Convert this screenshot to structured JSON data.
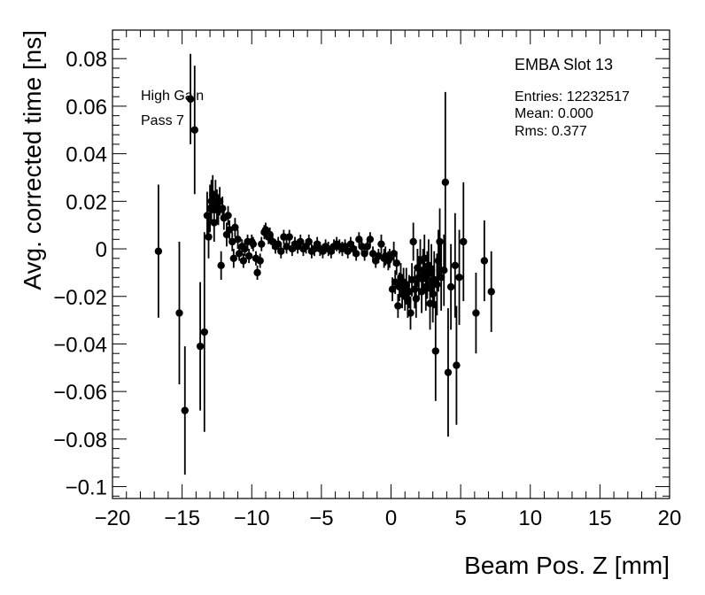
{
  "chart_data": {
    "type": "scatter",
    "title": "",
    "xlabel": "Beam Pos. Z [mm]",
    "ylabel": "Avg. corrected time [ns]",
    "xlim": [
      -20,
      20
    ],
    "ylim": [
      -0.105,
      0.092
    ],
    "grid": false,
    "xticks": [
      -20,
      -15,
      -10,
      -5,
      0,
      5,
      10,
      15,
      20
    ],
    "yticks": [
      -0.1,
      -0.08,
      -0.06,
      -0.04,
      -0.02,
      0,
      0.02,
      0.04,
      0.06,
      0.08
    ],
    "xtick_labels": [
      "−20",
      "−15",
      "−10",
      "−5",
      "0",
      "5",
      "10",
      "15",
      "20"
    ],
    "ytick_labels": [
      "−0.1",
      "−0.08",
      "−0.06",
      "−0.04",
      "−0.02",
      "0",
      "0.02",
      "0.04",
      "0.06",
      "0.08"
    ],
    "marker_color": "#000000",
    "annotations": {
      "gain": "High Gain",
      "pass": "Pass 7"
    },
    "stats_box": {
      "title": "EMBA Slot 13",
      "entries": "Entries: 12232517",
      "mean": "Mean: 0.000",
      "rms": "Rms: 0.377"
    },
    "series": [
      {
        "points": [
          {
            "x": -16.7,
            "y": -0.001,
            "e": 0.028
          },
          {
            "x": -15.2,
            "y": -0.027,
            "e": 0.03
          },
          {
            "x": -14.8,
            "y": -0.068,
            "e": 0.027
          },
          {
            "x": -14.4,
            "y": 0.063,
            "e": 0.019
          },
          {
            "x": -14.1,
            "y": 0.05,
            "e": 0.027
          },
          {
            "x": -13.7,
            "y": -0.041,
            "e": 0.027
          },
          {
            "x": -13.4,
            "y": -0.035,
            "e": 0.042
          },
          {
            "x": -13.2,
            "y": 0.014,
            "e": 0.01
          },
          {
            "x": -13.1,
            "y": 0.005,
            "e": 0.009
          },
          {
            "x": -13.0,
            "y": 0.017,
            "e": 0.01
          },
          {
            "x": -12.9,
            "y": 0.02,
            "e": 0.009
          },
          {
            "x": -12.8,
            "y": 0.023,
            "e": 0.008
          },
          {
            "x": -12.7,
            "y": 0.011,
            "e": 0.008
          },
          {
            "x": -12.6,
            "y": 0.022,
            "e": 0.007
          },
          {
            "x": -12.5,
            "y": 0.018,
            "e": 0.007
          },
          {
            "x": -12.4,
            "y": 0.016,
            "e": 0.006
          },
          {
            "x": -12.3,
            "y": 0.02,
            "e": 0.006
          },
          {
            "x": -12.2,
            "y": -0.007,
            "e": 0.006
          },
          {
            "x": -12.1,
            "y": 0.017,
            "e": 0.005
          },
          {
            "x": -12.0,
            "y": 0.013,
            "e": 0.005
          },
          {
            "x": -11.8,
            "y": 0.006,
            "e": 0.005
          },
          {
            "x": -11.7,
            "y": 0.014,
            "e": 0.004
          },
          {
            "x": -11.6,
            "y": 0.008,
            "e": 0.004
          },
          {
            "x": -11.4,
            "y": 0.003,
            "e": 0.004
          },
          {
            "x": -11.3,
            "y": -0.004,
            "e": 0.004
          },
          {
            "x": -11.2,
            "y": 0.009,
            "e": 0.004
          },
          {
            "x": -11.0,
            "y": 0.004,
            "e": 0.004
          },
          {
            "x": -10.9,
            "y": -0.002,
            "e": 0.003
          },
          {
            "x": -10.7,
            "y": 0.001,
            "e": 0.003
          },
          {
            "x": -10.6,
            "y": -0.005,
            "e": 0.003
          },
          {
            "x": -10.5,
            "y": 0.0,
            "e": 0.003
          },
          {
            "x": -10.3,
            "y": 0.003,
            "e": 0.003
          },
          {
            "x": -10.2,
            "y": -0.003,
            "e": 0.003
          },
          {
            "x": -10.0,
            "y": 0.003,
            "e": 0.003
          },
          {
            "x": -9.9,
            "y": 0.002,
            "e": 0.003
          },
          {
            "x": -9.7,
            "y": -0.004,
            "e": 0.003
          },
          {
            "x": -9.6,
            "y": -0.01,
            "e": 0.003
          },
          {
            "x": -9.4,
            "y": -0.005,
            "e": 0.003
          },
          {
            "x": -9.3,
            "y": 0.002,
            "e": 0.003
          },
          {
            "x": -9.1,
            "y": 0.007,
            "e": 0.003
          },
          {
            "x": -9.0,
            "y": 0.008,
            "e": 0.003
          },
          {
            "x": -8.8,
            "y": 0.005,
            "e": 0.003
          },
          {
            "x": -8.7,
            "y": 0.006,
            "e": 0.003
          },
          {
            "x": -8.5,
            "y": 0.003,
            "e": 0.003
          },
          {
            "x": -8.3,
            "y": 0.001,
            "e": 0.003
          },
          {
            "x": -8.1,
            "y": 0.002,
            "e": 0.003
          },
          {
            "x": -7.9,
            "y": -0.001,
            "e": 0.003
          },
          {
            "x": -7.7,
            "y": 0.005,
            "e": 0.003
          },
          {
            "x": -7.5,
            "y": 0.001,
            "e": 0.003
          },
          {
            "x": -7.3,
            "y": 0.005,
            "e": 0.003
          },
          {
            "x": -7.1,
            "y": 0.0,
            "e": 0.003
          },
          {
            "x": -6.9,
            "y": 0.002,
            "e": 0.003
          },
          {
            "x": -6.7,
            "y": 0.001,
            "e": 0.003
          },
          {
            "x": -6.5,
            "y": 0.003,
            "e": 0.003
          },
          {
            "x": -6.3,
            "y": 0.0,
            "e": 0.003
          },
          {
            "x": -6.1,
            "y": 0.001,
            "e": 0.003
          },
          {
            "x": -5.9,
            "y": 0.003,
            "e": 0.003
          },
          {
            "x": -5.7,
            "y": -0.001,
            "e": 0.003
          },
          {
            "x": -5.5,
            "y": 0.0,
            "e": 0.003
          },
          {
            "x": -5.3,
            "y": 0.002,
            "e": 0.003
          },
          {
            "x": -5.1,
            "y": 0.0,
            "e": 0.003
          },
          {
            "x": -4.9,
            "y": -0.001,
            "e": 0.003
          },
          {
            "x": -4.7,
            "y": 0.001,
            "e": 0.003
          },
          {
            "x": -4.5,
            "y": 0.0,
            "e": 0.003
          },
          {
            "x": -4.3,
            "y": -0.001,
            "e": 0.003
          },
          {
            "x": -4.1,
            "y": 0.001,
            "e": 0.003
          },
          {
            "x": -3.9,
            "y": 0.002,
            "e": 0.003
          },
          {
            "x": -3.7,
            "y": 0.001,
            "e": 0.003
          },
          {
            "x": -3.5,
            "y": 0.0,
            "e": 0.003
          },
          {
            "x": -3.3,
            "y": 0.001,
            "e": 0.003
          },
          {
            "x": -3.1,
            "y": -0.001,
            "e": 0.003
          },
          {
            "x": -2.9,
            "y": 0.002,
            "e": 0.003
          },
          {
            "x": -2.7,
            "y": 0.0,
            "e": 0.003
          },
          {
            "x": -2.5,
            "y": -0.002,
            "e": 0.003
          },
          {
            "x": -2.3,
            "y": 0.004,
            "e": 0.003
          },
          {
            "x": -2.1,
            "y": 0.001,
            "e": 0.003
          },
          {
            "x": -1.9,
            "y": -0.002,
            "e": 0.003
          },
          {
            "x": -1.7,
            "y": 0.001,
            "e": 0.003
          },
          {
            "x": -1.5,
            "y": 0.004,
            "e": 0.003
          },
          {
            "x": -1.3,
            "y": -0.002,
            "e": 0.003
          },
          {
            "x": -1.1,
            "y": -0.005,
            "e": 0.003
          },
          {
            "x": -0.9,
            "y": -0.003,
            "e": 0.003
          },
          {
            "x": -0.7,
            "y": 0.002,
            "e": 0.004
          },
          {
            "x": -0.5,
            "y": -0.004,
            "e": 0.004
          },
          {
            "x": -0.4,
            "y": -0.003,
            "e": 0.004
          },
          {
            "x": -0.2,
            "y": -0.005,
            "e": 0.004
          },
          {
            "x": -0.1,
            "y": -0.004,
            "e": 0.004
          },
          {
            "x": 0.1,
            "y": -0.017,
            "e": 0.005
          },
          {
            "x": 0.2,
            "y": -0.002,
            "e": 0.005
          },
          {
            "x": 0.3,
            "y": -0.014,
            "e": 0.005
          },
          {
            "x": 0.4,
            "y": -0.006,
            "e": 0.005
          },
          {
            "x": 0.5,
            "y": -0.024,
            "e": 0.005
          },
          {
            "x": 0.6,
            "y": -0.016,
            "e": 0.006
          },
          {
            "x": 0.7,
            "y": -0.012,
            "e": 0.006
          },
          {
            "x": 0.8,
            "y": -0.019,
            "e": 0.006
          },
          {
            "x": 0.9,
            "y": -0.014,
            "e": 0.006
          },
          {
            "x": 1.0,
            "y": -0.02,
            "e": 0.006
          },
          {
            "x": 1.1,
            "y": -0.015,
            "e": 0.007
          },
          {
            "x": 1.2,
            "y": -0.022,
            "e": 0.007
          },
          {
            "x": 1.3,
            "y": -0.018,
            "e": 0.007
          },
          {
            "x": 1.4,
            "y": -0.027,
            "e": 0.007
          },
          {
            "x": 1.5,
            "y": -0.013,
            "e": 0.007
          },
          {
            "x": 1.6,
            "y": 0.003,
            "e": 0.008
          },
          {
            "x": 1.7,
            "y": -0.017,
            "e": 0.008
          },
          {
            "x": 1.8,
            "y": -0.021,
            "e": 0.008
          },
          {
            "x": 1.9,
            "y": -0.008,
            "e": 0.008
          },
          {
            "x": 2.0,
            "y": -0.012,
            "e": 0.009
          },
          {
            "x": 2.1,
            "y": -0.005,
            "e": 0.009
          },
          {
            "x": 2.2,
            "y": -0.018,
            "e": 0.009
          },
          {
            "x": 2.3,
            "y": -0.009,
            "e": 0.009
          },
          {
            "x": 2.4,
            "y": -0.004,
            "e": 0.01
          },
          {
            "x": 2.5,
            "y": -0.016,
            "e": 0.01
          },
          {
            "x": 2.6,
            "y": -0.011,
            "e": 0.01
          },
          {
            "x": 2.7,
            "y": -0.007,
            "e": 0.011
          },
          {
            "x": 2.8,
            "y": -0.023,
            "e": 0.011
          },
          {
            "x": 2.9,
            "y": -0.009,
            "e": 0.011
          },
          {
            "x": 3.0,
            "y": -0.019,
            "e": 0.012
          },
          {
            "x": 3.1,
            "y": -0.013,
            "e": 0.012
          },
          {
            "x": 3.2,
            "y": -0.043,
            "e": 0.021
          },
          {
            "x": 3.3,
            "y": -0.015,
            "e": 0.013
          },
          {
            "x": 3.4,
            "y": -0.005,
            "e": 0.013
          },
          {
            "x": 3.5,
            "y": 0.003,
            "e": 0.014
          },
          {
            "x": 3.6,
            "y": -0.012,
            "e": 0.014
          },
          {
            "x": 3.8,
            "y": -0.009,
            "e": 0.015
          },
          {
            "x": 3.9,
            "y": 0.028,
            "e": 0.038
          },
          {
            "x": 4.1,
            "y": -0.052,
            "e": 0.027
          },
          {
            "x": 4.3,
            "y": -0.016,
            "e": 0.018
          },
          {
            "x": 4.6,
            "y": -0.007,
            "e": 0.022
          },
          {
            "x": 4.7,
            "y": -0.049,
            "e": 0.025
          },
          {
            "x": 4.9,
            "y": -0.012,
            "e": 0.02
          },
          {
            "x": 5.2,
            "y": 0.003,
            "e": 0.025
          },
          {
            "x": 6.1,
            "y": -0.027,
            "e": 0.017
          },
          {
            "x": 6.7,
            "y": -0.005,
            "e": 0.017
          },
          {
            "x": 7.2,
            "y": -0.018,
            "e": 0.017
          }
        ]
      }
    ]
  }
}
